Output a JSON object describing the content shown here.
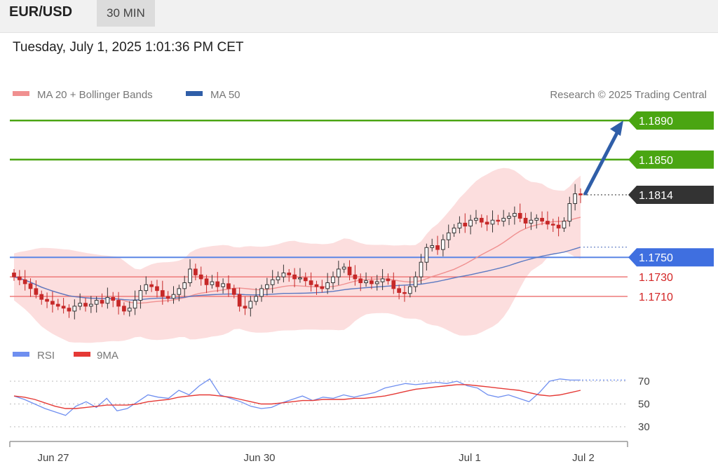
{
  "header": {
    "symbol": "EUR/USD",
    "timeframe": "30 MIN"
  },
  "datetime": "Tuesday, July 1, 2025 1:01:36 PM CET",
  "legend": {
    "ma20": "MA 20 + Bollinger Bands",
    "ma50": "MA 50",
    "copyright": "Research © 2025 Trading Central"
  },
  "rsi_legend": {
    "rsi": "RSI",
    "ma9": "9MA"
  },
  "colors": {
    "resistance": "#4aa512",
    "pivot": "#5b86e5",
    "support": "#ee7a7a",
    "current": "#333333",
    "arrow": "#2f5ea8",
    "candle_up": "#333333",
    "candle_down": "#c62828",
    "band": "#fbd3d3",
    "ma20": "#f09090",
    "ma50": "#5b79c2",
    "rsi": "#6f8ff0",
    "rsi_ma": "#e53935"
  },
  "chart_data": [
    {
      "type": "candlestick",
      "title": "EUR/USD 30 MIN",
      "x_labels": [
        "Jun 27",
        "Jun 30",
        "Jul 1",
        "Jul 2"
      ],
      "levels": [
        {
          "value": 1.189,
          "label": "1.1890",
          "kind": "resistance"
        },
        {
          "value": 1.185,
          "label": "1.1850",
          "kind": "resistance"
        },
        {
          "value": 1.1814,
          "label": "1.1814",
          "kind": "current"
        },
        {
          "value": 1.175,
          "label": "1.1750",
          "kind": "pivot"
        },
        {
          "value": 1.173,
          "label": "1.1730",
          "kind": "support"
        },
        {
          "value": 1.171,
          "label": "1.1710",
          "kind": "support"
        }
      ],
      "closes": [
        1.173,
        1.1727,
        1.1723,
        1.1718,
        1.1712,
        1.1707,
        1.1705,
        1.1702,
        1.17,
        1.1698,
        1.1695,
        1.17,
        1.1703,
        1.17,
        1.1702,
        1.1706,
        1.1703,
        1.1709,
        1.1706,
        1.17,
        1.1695,
        1.1698,
        1.1706,
        1.1716,
        1.1722,
        1.172,
        1.1716,
        1.171,
        1.1708,
        1.1712,
        1.1718,
        1.1724,
        1.1738,
        1.1732,
        1.1728,
        1.1722,
        1.1725,
        1.172,
        1.1723,
        1.1718,
        1.1712,
        1.17,
        1.1698,
        1.1705,
        1.171,
        1.1718,
        1.1722,
        1.1727,
        1.173,
        1.1734,
        1.1732,
        1.1728,
        1.1729,
        1.1726,
        1.1722,
        1.172,
        1.1718,
        1.1724,
        1.173,
        1.1738,
        1.174,
        1.1732,
        1.1728,
        1.1724,
        1.1726,
        1.1723,
        1.1725,
        1.1728,
        1.1726,
        1.1718,
        1.1714,
        1.1713,
        1.172,
        1.173,
        1.1745,
        1.176,
        1.1762,
        1.1758,
        1.1768,
        1.1775,
        1.178,
        1.1785,
        1.1782,
        1.1788,
        1.179,
        1.1786,
        1.1784,
        1.1788,
        1.1787,
        1.179,
        1.1792,
        1.1795,
        1.179,
        1.1785,
        1.1788,
        1.179,
        1.1787,
        1.1784,
        1.1783,
        1.178,
        1.1787,
        1.1805,
        1.1815,
        1.1814
      ]
    },
    {
      "type": "line",
      "title": "RSI",
      "series": [
        {
          "name": "RSI",
          "values": [
            57,
            54,
            50,
            46,
            43,
            40,
            48,
            52,
            47,
            55,
            44,
            46,
            52,
            58,
            56,
            55,
            62,
            58,
            66,
            72,
            58,
            55,
            52,
            48,
            46,
            47,
            51,
            54,
            57,
            53,
            56,
            55,
            58,
            56,
            58,
            60,
            64,
            66,
            68,
            67,
            68,
            69,
            68,
            70,
            66,
            64,
            58,
            56,
            58,
            55,
            52,
            60,
            70,
            72,
            71,
            71
          ]
        },
        {
          "name": "9MA",
          "values": [
            57,
            56,
            54,
            51,
            48,
            46,
            46,
            47,
            48,
            49,
            49,
            49,
            50,
            52,
            53,
            54,
            56,
            57,
            58,
            58,
            57,
            56,
            54,
            52,
            50,
            50,
            51,
            52,
            53,
            53,
            54,
            54,
            54,
            55,
            55,
            56,
            57,
            59,
            61,
            63,
            64,
            65,
            66,
            67,
            67,
            66,
            65,
            64,
            63,
            62,
            60,
            58,
            57,
            58,
            60,
            62
          ]
        }
      ],
      "y_ticks": [
        "70",
        "50",
        "30"
      ],
      "y_values": [
        70,
        50,
        30
      ]
    }
  ]
}
